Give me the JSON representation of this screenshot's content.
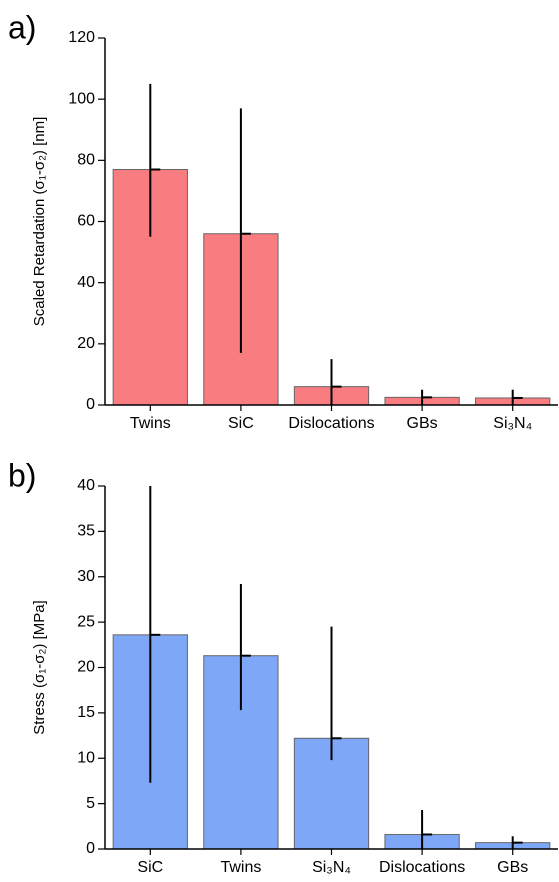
{
  "chart_data": [
    {
      "type": "bar",
      "panel_label": "a)",
      "ylabel": "Scaled Retardation (σ₁-σ₂) [nm]",
      "categories": [
        "Twins",
        "SiC",
        "Dislocations",
        "GBs",
        "Si₃N₄"
      ],
      "values": [
        77,
        56,
        6,
        2.5,
        2.3
      ],
      "errors_minus": [
        22,
        39,
        6,
        2.5,
        2.3
      ],
      "errors_plus": [
        28,
        41,
        9,
        2.5,
        2.7
      ],
      "color": "#f87c80",
      "ylim": [
        0,
        120
      ],
      "yticks": [
        0,
        20,
        40,
        60,
        80,
        100,
        120
      ]
    },
    {
      "type": "bar",
      "panel_label": "b)",
      "ylabel": "Stress (σ₁-σ₂) [MPa]",
      "categories": [
        "SiC",
        "Twins",
        "Si₃N₄",
        "Dislocations",
        "GBs"
      ],
      "values": [
        23.6,
        21.3,
        12.2,
        1.6,
        0.7
      ],
      "errors_minus": [
        16.3,
        6,
        2.4,
        1.6,
        0.7
      ],
      "errors_plus": [
        16.4,
        7.9,
        12.3,
        2.7,
        0.7
      ],
      "color": "#7ea7f7",
      "ylim": [
        0,
        40
      ],
      "yticks": [
        0,
        5,
        10,
        15,
        20,
        25,
        30,
        35,
        40
      ]
    }
  ]
}
